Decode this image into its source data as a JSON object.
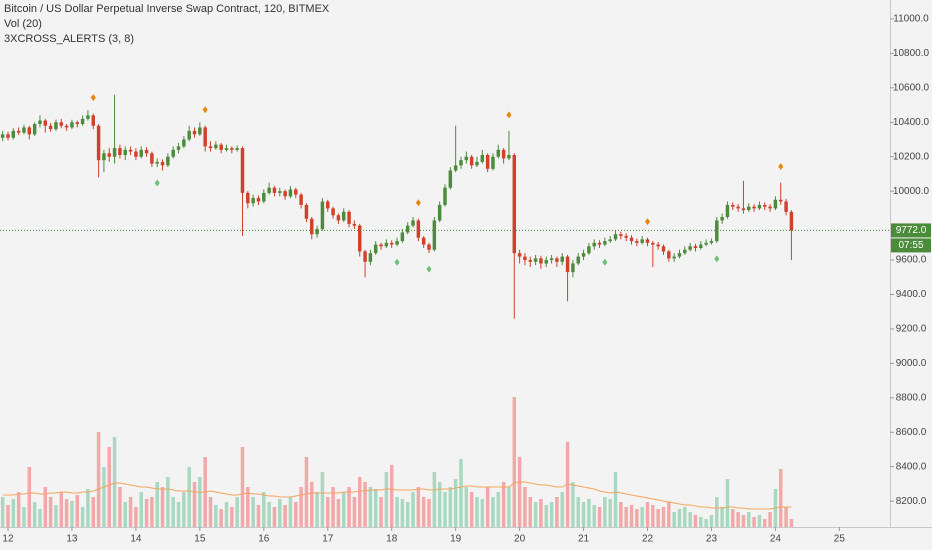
{
  "chart_data": {
    "type": "candlestick",
    "legend": [
      "Bitcoin / US Dollar Perpetual Inverse Swap Contract, 120, BITMEX",
      "Vol (20)",
      "3XCROSS_ALERTS (3, 8)"
    ],
    "up_color": "#4b8b3b",
    "down_color": "#d0402a",
    "volume_up_color": "#a8d8c0",
    "volume_down_color": "#f2a8a8",
    "volume_ma_color": "#f5a45c",
    "sell_color": "#e8850f",
    "buy_color": "#6bbf7a",
    "ylim": [
      8050,
      11110
    ],
    "yticks": [
      {
        "value": 8200,
        "label": "8200.0"
      },
      {
        "value": 8400,
        "label": "8400.0"
      },
      {
        "value": 8600,
        "label": "8600.0"
      },
      {
        "value": 8800,
        "label": "8800.0"
      },
      {
        "value": 9000,
        "label": "9000.0"
      },
      {
        "value": 9200,
        "label": "9200.0"
      },
      {
        "value": 9400,
        "label": "9400.0"
      },
      {
        "value": 9600,
        "label": "9600.0"
      },
      {
        "value": 10000,
        "label": "10000.0"
      },
      {
        "value": 10200,
        "label": "10200.0"
      },
      {
        "value": 10400,
        "label": "10400.0"
      },
      {
        "value": 10600,
        "label": "10600.0"
      },
      {
        "value": 10800,
        "label": "10800.0"
      },
      {
        "value": 11000,
        "label": "11000.0"
      }
    ],
    "xlim": [
      -0.5,
      166.5
    ],
    "xticks": [
      {
        "value": 1,
        "label": "12"
      },
      {
        "value": 13,
        "label": "13"
      },
      {
        "value": 25,
        "label": "14"
      },
      {
        "value": 37,
        "label": "15"
      },
      {
        "value": 49,
        "label": "16"
      },
      {
        "value": 61,
        "label": "17"
      },
      {
        "value": 73,
        "label": "18"
      },
      {
        "value": 85,
        "label": "19"
      },
      {
        "value": 97,
        "label": "20"
      },
      {
        "value": 109,
        "label": "21"
      },
      {
        "value": 121,
        "label": "22"
      },
      {
        "value": 133,
        "label": "23"
      },
      {
        "value": 145,
        "label": "24"
      },
      {
        "value": 157,
        "label": "25"
      }
    ],
    "last_price": {
      "value": 9772,
      "label": "9772.0"
    },
    "countdown": "07:55",
    "candles": [
      [
        10310,
        10350,
        10290,
        10330
      ],
      [
        10330,
        10345,
        10295,
        10310
      ],
      [
        10310,
        10365,
        10300,
        10350
      ],
      [
        10350,
        10370,
        10325,
        10340
      ],
      [
        10340,
        10385,
        10330,
        10370
      ],
      [
        10370,
        10380,
        10300,
        10330
      ],
      [
        10330,
        10400,
        10320,
        10390
      ],
      [
        10390,
        10440,
        10370,
        10410
      ],
      [
        10410,
        10420,
        10340,
        10380
      ],
      [
        10380,
        10395,
        10345,
        10360
      ],
      [
        10360,
        10415,
        10350,
        10400
      ],
      [
        10400,
        10420,
        10365,
        10380
      ],
      [
        10380,
        10390,
        10350,
        10370
      ],
      [
        10370,
        10415,
        10360,
        10400
      ],
      [
        10400,
        10410,
        10370,
        10390
      ],
      [
        10390,
        10440,
        10380,
        10420
      ],
      [
        10420,
        10470,
        10410,
        10440
      ],
      [
        10440,
        10450,
        10360,
        10380
      ],
      [
        10380,
        10390,
        10080,
        10180
      ],
      [
        10180,
        10240,
        10110,
        10220
      ],
      [
        10220,
        10250,
        10170,
        10200
      ],
      [
        10200,
        10560,
        10160,
        10250
      ],
      [
        10250,
        10270,
        10190,
        10210
      ],
      [
        10210,
        10260,
        10180,
        10240
      ],
      [
        10240,
        10260,
        10210,
        10230
      ],
      [
        10230,
        10250,
        10180,
        10200
      ],
      [
        10200,
        10260,
        10190,
        10240
      ],
      [
        10240,
        10255,
        10200,
        10220
      ],
      [
        10220,
        10230,
        10140,
        10160
      ],
      [
        10160,
        10190,
        10140,
        10170
      ],
      [
        10170,
        10185,
        10120,
        10150
      ],
      [
        10150,
        10220,
        10140,
        10200
      ],
      [
        10200,
        10260,
        10190,
        10240
      ],
      [
        10240,
        10280,
        10220,
        10260
      ],
      [
        10260,
        10320,
        10250,
        10300
      ],
      [
        10300,
        10380,
        10290,
        10350
      ],
      [
        10350,
        10370,
        10310,
        10330
      ],
      [
        10330,
        10400,
        10320,
        10370
      ],
      [
        10370,
        10380,
        10230,
        10260
      ],
      [
        10260,
        10290,
        10230,
        10250
      ],
      [
        10250,
        10290,
        10240,
        10270
      ],
      [
        10270,
        10280,
        10220,
        10240
      ],
      [
        10240,
        10270,
        10230,
        10250
      ],
      [
        10250,
        10260,
        10220,
        10240
      ],
      [
        10240,
        10265,
        10230,
        10250
      ],
      [
        10250,
        10260,
        9740,
        9990
      ],
      [
        9990,
        10000,
        9900,
        9930
      ],
      [
        9930,
        9980,
        9910,
        9960
      ],
      [
        9960,
        9975,
        9920,
        9940
      ],
      [
        9940,
        10010,
        9930,
        9990
      ],
      [
        9990,
        10050,
        9980,
        10020
      ],
      [
        10020,
        10030,
        9970,
        9990
      ],
      [
        9990,
        10020,
        9970,
        10000
      ],
      [
        10000,
        10010,
        9950,
        9970
      ],
      [
        9970,
        10030,
        9960,
        10010
      ],
      [
        10010,
        10020,
        9960,
        9980
      ],
      [
        9980,
        9990,
        9900,
        9920
      ],
      [
        9920,
        9930,
        9820,
        9840
      ],
      [
        9840,
        9850,
        9720,
        9750
      ],
      [
        9750,
        9800,
        9730,
        9780
      ],
      [
        9780,
        9960,
        9770,
        9940
      ],
      [
        9940,
        9950,
        9880,
        9900
      ],
      [
        9900,
        9910,
        9840,
        9860
      ],
      [
        9860,
        9870,
        9810,
        9830
      ],
      [
        9830,
        9900,
        9820,
        9880
      ],
      [
        9880,
        9890,
        9790,
        9810
      ],
      [
        9810,
        9830,
        9780,
        9800
      ],
      [
        9800,
        9810,
        9620,
        9650
      ],
      [
        9650,
        9660,
        9500,
        9590
      ],
      [
        9590,
        9660,
        9570,
        9640
      ],
      [
        9640,
        9710,
        9630,
        9690
      ],
      [
        9690,
        9700,
        9660,
        9680
      ],
      [
        9680,
        9720,
        9670,
        9700
      ],
      [
        9700,
        9715,
        9670,
        9690
      ],
      [
        9690,
        9730,
        9680,
        9710
      ],
      [
        9710,
        9780,
        9700,
        9760
      ],
      [
        9760,
        9820,
        9750,
        9800
      ],
      [
        9800,
        9850,
        9790,
        9830
      ],
      [
        9830,
        9840,
        9710,
        9730
      ],
      [
        9730,
        9740,
        9670,
        9690
      ],
      [
        9690,
        9700,
        9640,
        9660
      ],
      [
        9660,
        9850,
        9650,
        9830
      ],
      [
        9830,
        9940,
        9820,
        9920
      ],
      [
        9920,
        10040,
        9910,
        10020
      ],
      [
        10020,
        10140,
        10010,
        10120
      ],
      [
        10120,
        10380,
        10110,
        10150
      ],
      [
        10150,
        10200,
        10130,
        10180
      ],
      [
        10180,
        10230,
        10160,
        10200
      ],
      [
        10200,
        10210,
        10130,
        10150
      ],
      [
        10150,
        10200,
        10140,
        10170
      ],
      [
        10170,
        10240,
        10160,
        10210
      ],
      [
        10210,
        10220,
        10110,
        10130
      ],
      [
        10130,
        10220,
        10120,
        10200
      ],
      [
        10200,
        10270,
        10190,
        10240
      ],
      [
        10240,
        10250,
        10160,
        10190
      ],
      [
        10190,
        10350,
        10180,
        10210
      ],
      [
        10210,
        10220,
        9260,
        9640
      ],
      [
        9640,
        9660,
        9580,
        9620
      ],
      [
        9620,
        9640,
        9570,
        9600
      ],
      [
        9600,
        9620,
        9560,
        9590
      ],
      [
        9590,
        9630,
        9570,
        9610
      ],
      [
        9610,
        9625,
        9550,
        9580
      ],
      [
        9580,
        9620,
        9560,
        9600
      ],
      [
        9600,
        9630,
        9580,
        9610
      ],
      [
        9610,
        9620,
        9560,
        9590
      ],
      [
        9590,
        9640,
        9570,
        9620
      ],
      [
        9620,
        9630,
        9360,
        9530
      ],
      [
        9530,
        9600,
        9500,
        9580
      ],
      [
        9580,
        9640,
        9570,
        9620
      ],
      [
        9620,
        9660,
        9600,
        9640
      ],
      [
        9640,
        9700,
        9630,
        9680
      ],
      [
        9680,
        9720,
        9660,
        9700
      ],
      [
        9700,
        9715,
        9670,
        9690
      ],
      [
        9690,
        9730,
        9680,
        9710
      ],
      [
        9710,
        9740,
        9700,
        9720
      ],
      [
        9720,
        9770,
        9710,
        9750
      ],
      [
        9750,
        9765,
        9720,
        9740
      ],
      [
        9740,
        9755,
        9710,
        9730
      ],
      [
        9730,
        9745,
        9690,
        9710
      ],
      [
        9710,
        9725,
        9680,
        9700
      ],
      [
        9700,
        9740,
        9690,
        9720
      ],
      [
        9720,
        9730,
        9680,
        9700
      ],
      [
        9700,
        9710,
        9560,
        9690
      ],
      [
        9690,
        9705,
        9660,
        9680
      ],
      [
        9680,
        9690,
        9630,
        9650
      ],
      [
        9650,
        9660,
        9590,
        9610
      ],
      [
        9610,
        9640,
        9590,
        9620
      ],
      [
        9620,
        9660,
        9610,
        9640
      ],
      [
        9640,
        9680,
        9630,
        9660
      ],
      [
        9660,
        9700,
        9650,
        9680
      ],
      [
        9680,
        9695,
        9650,
        9670
      ],
      [
        9670,
        9710,
        9660,
        9690
      ],
      [
        9690,
        9720,
        9680,
        9700
      ],
      [
        9700,
        9725,
        9690,
        9710
      ],
      [
        9710,
        9850,
        9700,
        9830
      ],
      [
        9830,
        9870,
        9810,
        9850
      ],
      [
        9850,
        9940,
        9840,
        9920
      ],
      [
        9920,
        9935,
        9890,
        9910
      ],
      [
        9910,
        9925,
        9880,
        9900
      ],
      [
        9900,
        10060,
        9870,
        9890
      ],
      [
        9890,
        9930,
        9880,
        9910
      ],
      [
        9910,
        9925,
        9880,
        9900
      ],
      [
        9900,
        9940,
        9890,
        9920
      ],
      [
        9920,
        9935,
        9890,
        9910
      ],
      [
        9910,
        9925,
        9880,
        9900
      ],
      [
        9900,
        9970,
        9890,
        9950
      ],
      [
        9950,
        10050,
        9920,
        9940
      ],
      [
        9940,
        9955,
        9860,
        9880
      ],
      [
        9880,
        9890,
        9600,
        9772
      ]
    ],
    "volumes": [
      30,
      22,
      28,
      35,
      20,
      60,
      25,
      18,
      40,
      30,
      22,
      35,
      28,
      26,
      32,
      20,
      38,
      30,
      95,
      60,
      80,
      90,
      40,
      25,
      30,
      20,
      35,
      28,
      30,
      45,
      40,
      50,
      30,
      25,
      35,
      60,
      45,
      50,
      70,
      30,
      22,
      18,
      25,
      20,
      30,
      80,
      40,
      30,
      22,
      35,
      25,
      20,
      28,
      22,
      30,
      25,
      40,
      70,
      45,
      35,
      55,
      30,
      40,
      28,
      35,
      40,
      30,
      50,
      45,
      40,
      38,
      30,
      55,
      62,
      30,
      28,
      25,
      35,
      40,
      30,
      28,
      55,
      45,
      35,
      40,
      48,
      68,
      40,
      35,
      30,
      28,
      40,
      30,
      35,
      45,
      40,
      130,
      70,
      40,
      30,
      25,
      28,
      22,
      25,
      30,
      35,
      85,
      45,
      30,
      25,
      28,
      22,
      20,
      30,
      28,
      55,
      25,
      20,
      22,
      18,
      20,
      25,
      22,
      18,
      20,
      25,
      15,
      18,
      20,
      15,
      12,
      10,
      8,
      12,
      30,
      20,
      48,
      18,
      15,
      12,
      15,
      10,
      12,
      8,
      15,
      38,
      58,
      20,
      8
    ],
    "volume_ma": [
      32,
      32,
      32,
      33,
      33,
      34,
      34,
      33,
      33,
      34,
      34,
      35,
      35,
      34,
      34,
      35,
      35,
      36,
      38,
      40,
      42,
      44,
      44,
      43,
      42,
      41,
      40,
      40,
      39,
      38,
      38,
      38,
      37,
      36,
      36,
      36,
      35,
      35,
      35,
      36,
      35,
      34,
      33,
      32,
      32,
      33,
      34,
      33,
      33,
      32,
      31,
      31,
      30,
      30,
      30,
      31,
      32,
      33,
      34,
      34,
      34,
      34,
      34,
      34,
      35,
      35,
      35,
      36,
      36,
      37,
      37,
      37,
      38,
      38,
      37,
      37,
      37,
      37,
      38,
      38,
      37,
      37,
      38,
      38,
      38,
      39,
      40,
      41,
      41,
      40,
      40,
      40,
      40,
      40,
      40,
      40,
      44,
      45,
      45,
      44,
      43,
      42,
      42,
      41,
      40,
      40,
      43,
      42,
      41,
      40,
      39,
      38,
      36,
      35,
      34,
      35,
      34,
      33,
      32,
      31,
      30,
      29,
      28,
      27,
      26,
      25,
      24,
      23,
      22,
      22,
      21,
      20,
      20,
      19,
      19,
      19,
      20,
      20,
      19,
      19,
      18,
      18,
      18,
      18,
      18,
      19,
      20,
      20,
      20
    ],
    "sell_signals": [
      17,
      38,
      78,
      95,
      121,
      146
    ],
    "buy_signals": [
      29,
      74,
      80,
      113,
      134
    ]
  }
}
